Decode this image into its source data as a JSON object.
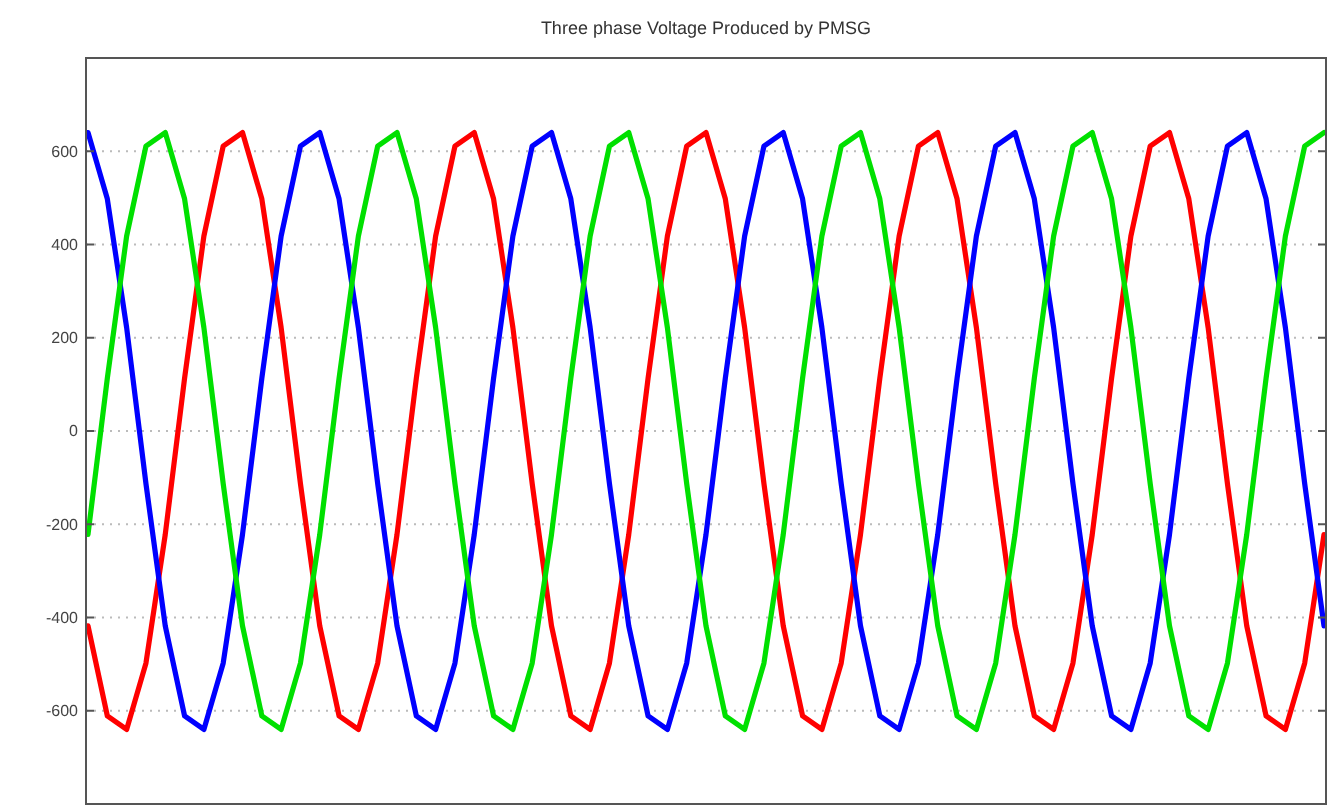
{
  "chart_data": {
    "type": "line",
    "title": "Three phase Voltage Produced by PMSG",
    "categories": [
      null,
      null,
      null,
      null,
      null,
      null,
      null,
      null,
      null,
      null,
      null,
      null,
      null,
      null,
      null,
      null,
      null,
      null,
      null,
      null,
      null,
      null,
      null,
      null,
      null,
      null,
      null,
      null,
      null,
      null,
      null,
      null,
      null,
      null,
      null,
      null,
      null,
      null,
      null,
      null,
      null,
      null,
      null,
      null,
      null,
      null,
      null,
      null,
      null,
      null,
      null,
      null,
      null,
      null,
      null,
      null,
      null,
      null,
      null,
      null,
      null,
      null,
      null,
      null,
      null
    ],
    "series": [
      {
        "color": "#ff0000",
        "values": [
          -418,
          -611,
          -640,
          -498,
          -222,
          113,
          418,
          611,
          640,
          498,
          222,
          -113,
          -418,
          -611,
          -640,
          -498,
          -222,
          113,
          418,
          611,
          640,
          498,
          222,
          -113,
          -418,
          -611,
          -640,
          -498,
          -222,
          113,
          418,
          611,
          640,
          498,
          222,
          -113,
          -418,
          -611,
          -640,
          -498,
          -222,
          113,
          418,
          611,
          640,
          498,
          222,
          -113,
          -418,
          -611,
          -640,
          -498,
          -222,
          113,
          418,
          611,
          640,
          498,
          222,
          -113,
          -418,
          -611,
          -640,
          -498,
          -222
        ]
      },
      {
        "color": "#0000ff",
        "values": [
          640,
          498,
          222,
          -113,
          -418,
          -611,
          -640,
          -498,
          -222,
          113,
          418,
          611,
          640,
          498,
          222,
          -113,
          -418,
          -611,
          -640,
          -498,
          -222,
          113,
          418,
          611,
          640,
          498,
          222,
          -113,
          -418,
          -611,
          -640,
          -498,
          -222,
          113,
          418,
          611,
          640,
          498,
          222,
          -113,
          -418,
          -611,
          -640,
          -498,
          -222,
          113,
          418,
          611,
          640,
          498,
          222,
          -113,
          -418,
          -611,
          -640,
          -498,
          -222,
          113,
          418,
          611,
          640,
          498,
          222,
          -113,
          -418
        ]
      },
      {
        "color": "#00e000",
        "values": [
          -222,
          113,
          418,
          611,
          640,
          498,
          222,
          -113,
          -418,
          -611,
          -640,
          -498,
          -222,
          113,
          418,
          611,
          640,
          498,
          222,
          -113,
          -418,
          -611,
          -640,
          -498,
          -222,
          113,
          418,
          611,
          640,
          498,
          222,
          -113,
          -418,
          -611,
          -640,
          -498,
          -222,
          113,
          418,
          611,
          640,
          498,
          222,
          -113,
          -418,
          -611,
          -640,
          -498,
          -222,
          113,
          418,
          611,
          640,
          498,
          222,
          -113,
          -418,
          -611,
          -640,
          -498,
          -222,
          113,
          418,
          611,
          640
        ]
      }
    ],
    "ylim": [
      -800,
      800
    ],
    "yticks": [
      -600,
      -400,
      -200,
      0,
      200,
      400,
      600
    ],
    "grid": "y",
    "line_style": "solid"
  }
}
